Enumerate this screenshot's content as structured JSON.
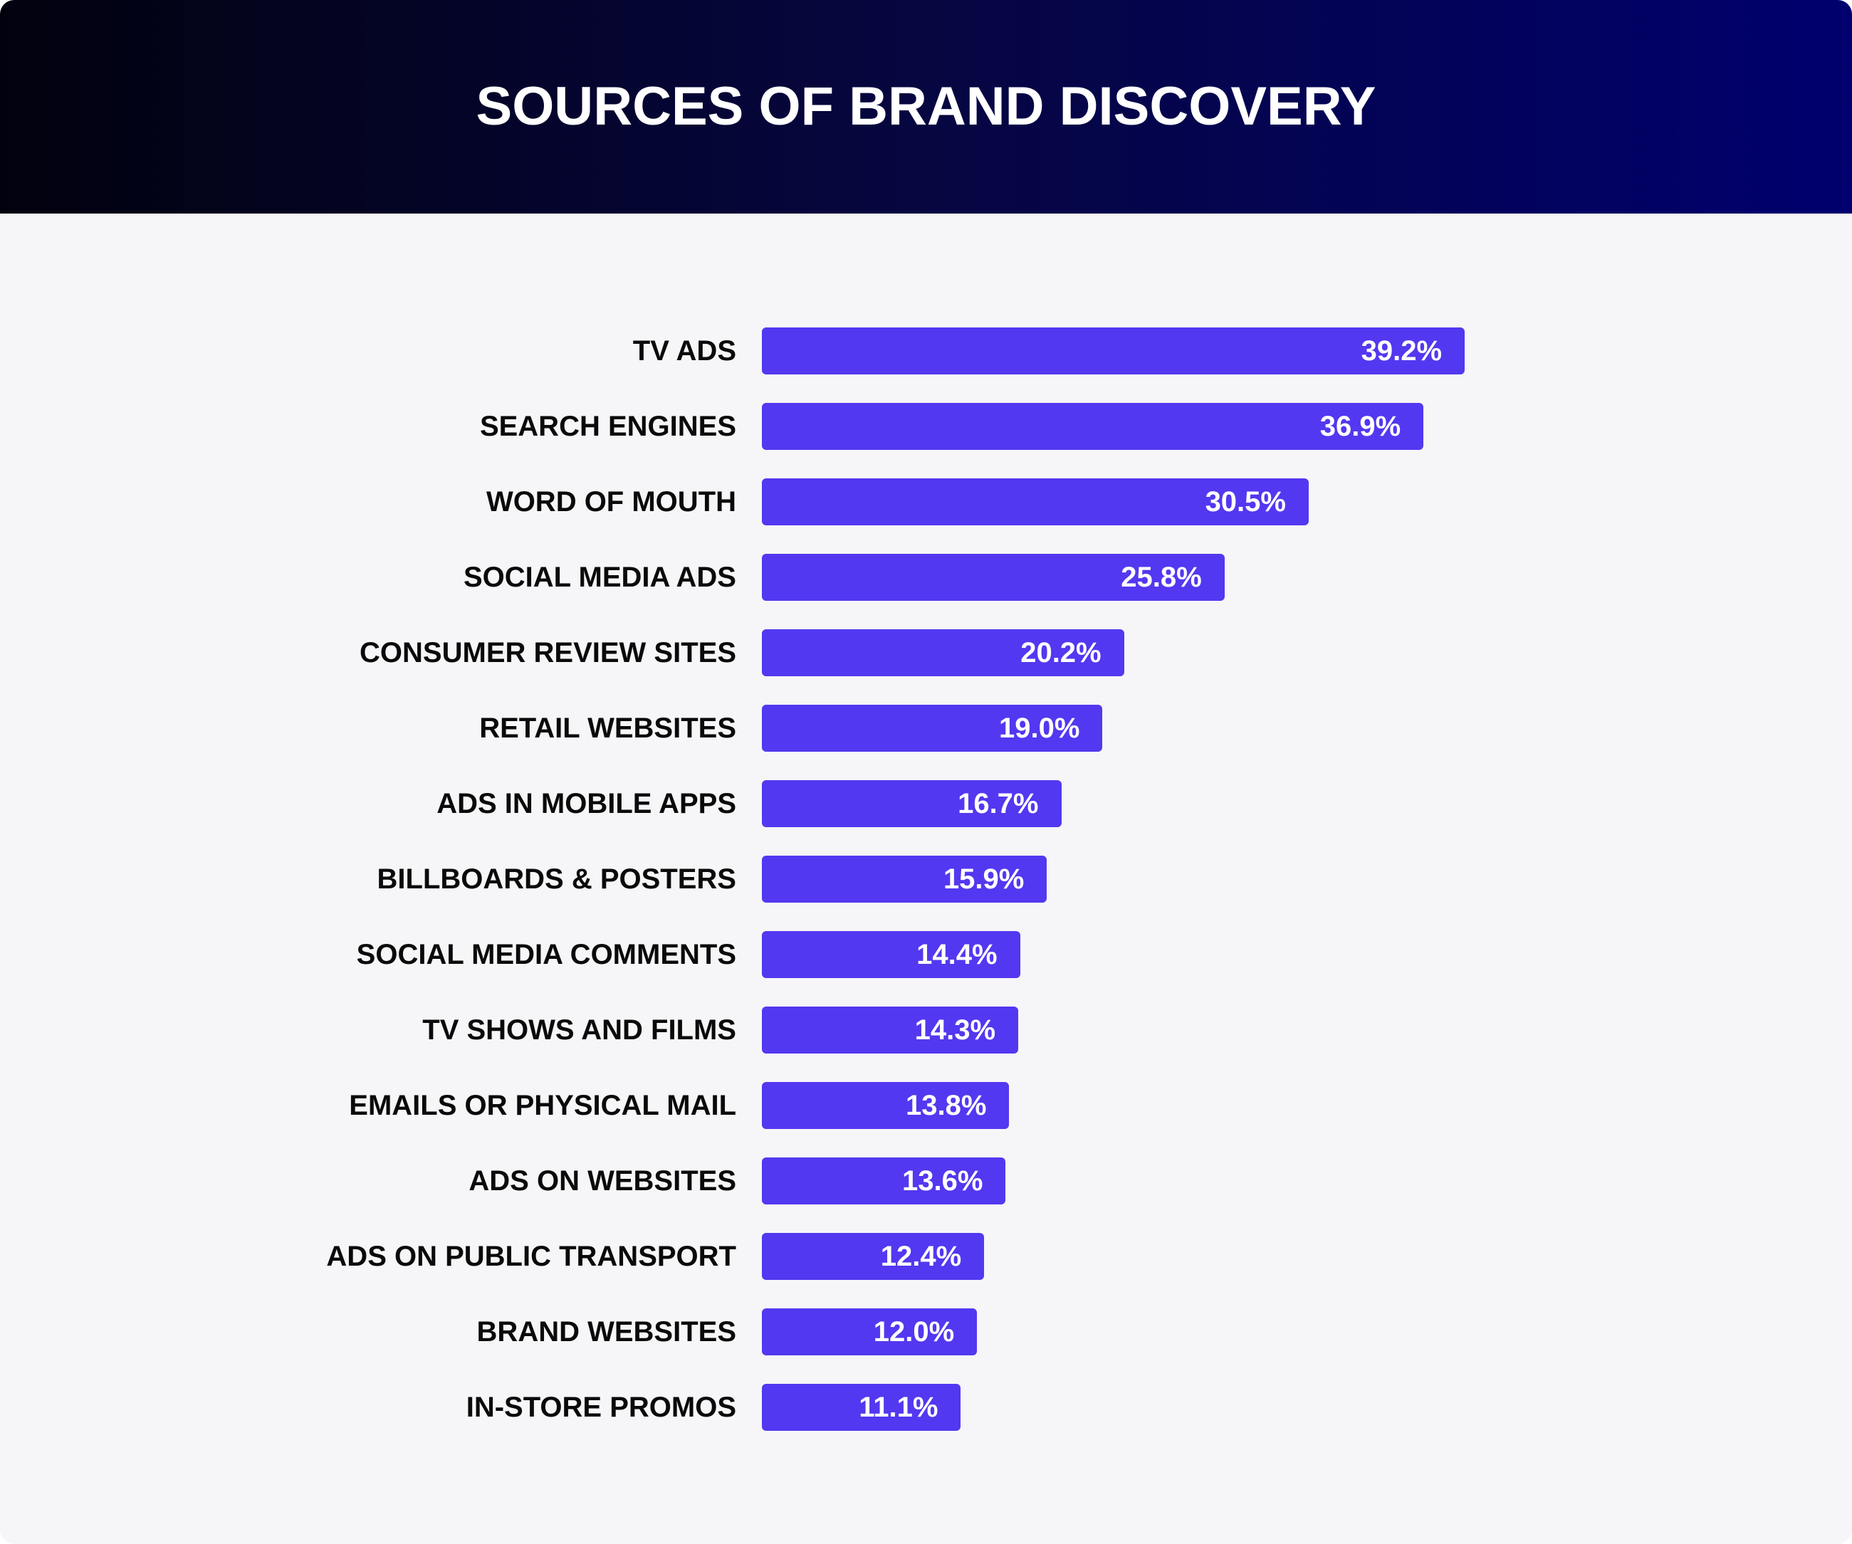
{
  "title": "SOURCES OF BRAND DISCOVERY",
  "colors": {
    "bar": "#5238f0",
    "header_start": "#02020f",
    "header_end": "#00006e",
    "background": "#f6f6f8"
  },
  "rows": [
    {
      "label": "TV ADS",
      "value": 39.2,
      "display": "39.2%"
    },
    {
      "label": "SEARCH ENGINES",
      "value": 36.9,
      "display": "36.9%"
    },
    {
      "label": "WORD OF MOUTH",
      "value": 30.5,
      "display": "30.5%"
    },
    {
      "label": "SOCIAL MEDIA ADS",
      "value": 25.8,
      "display": "25.8%"
    },
    {
      "label": "CONSUMER REVIEW SITES",
      "value": 20.2,
      "display": "20.2%"
    },
    {
      "label": "RETAIL WEBSITES",
      "value": 19.0,
      "display": "19.0%"
    },
    {
      "label": "ADS IN MOBILE APPS",
      "value": 16.7,
      "display": "16.7%"
    },
    {
      "label": "BILLBOARDS & POSTERS",
      "value": 15.9,
      "display": "15.9%"
    },
    {
      "label": "SOCIAL MEDIA COMMENTS",
      "value": 14.4,
      "display": "14.4%"
    },
    {
      "label": "TV SHOWS AND FILMS",
      "value": 14.3,
      "display": "14.3%"
    },
    {
      "label": "EMAILS OR PHYSICAL MAIL",
      "value": 13.8,
      "display": "13.8%"
    },
    {
      "label": "ADS ON WEBSITES",
      "value": 13.6,
      "display": "13.6%"
    },
    {
      "label": "ADS ON PUBLIC TRANSPORT",
      "value": 12.4,
      "display": "12.4%"
    },
    {
      "label": "BRAND WEBSITES",
      "value": 12.0,
      "display": "12.0%"
    },
    {
      "label": "IN-STORE PROMOS",
      "value": 11.1,
      "display": "11.1%"
    }
  ],
  "chart_data": {
    "type": "bar",
    "orientation": "horizontal",
    "title": "SOURCES OF BRAND DISCOVERY",
    "categories": [
      "TV ADS",
      "SEARCH ENGINES",
      "WORD OF MOUTH",
      "SOCIAL MEDIA ADS",
      "CONSUMER REVIEW SITES",
      "RETAIL WEBSITES",
      "ADS IN MOBILE APPS",
      "BILLBOARDS & POSTERS",
      "SOCIAL MEDIA COMMENTS",
      "TV SHOWS AND FILMS",
      "EMAILS OR PHYSICAL MAIL",
      "ADS ON WEBSITES",
      "ADS ON PUBLIC TRANSPORT",
      "BRAND WEBSITES",
      "IN-STORE PROMOS"
    ],
    "values": [
      39.2,
      36.9,
      30.5,
      25.8,
      20.2,
      19.0,
      16.7,
      15.9,
      14.4,
      14.3,
      13.8,
      13.6,
      12.4,
      12.0,
      11.1
    ],
    "unit": "%",
    "xlabel": "",
    "ylabel": "",
    "grid": false,
    "legend": "none",
    "data_labels": true
  }
}
